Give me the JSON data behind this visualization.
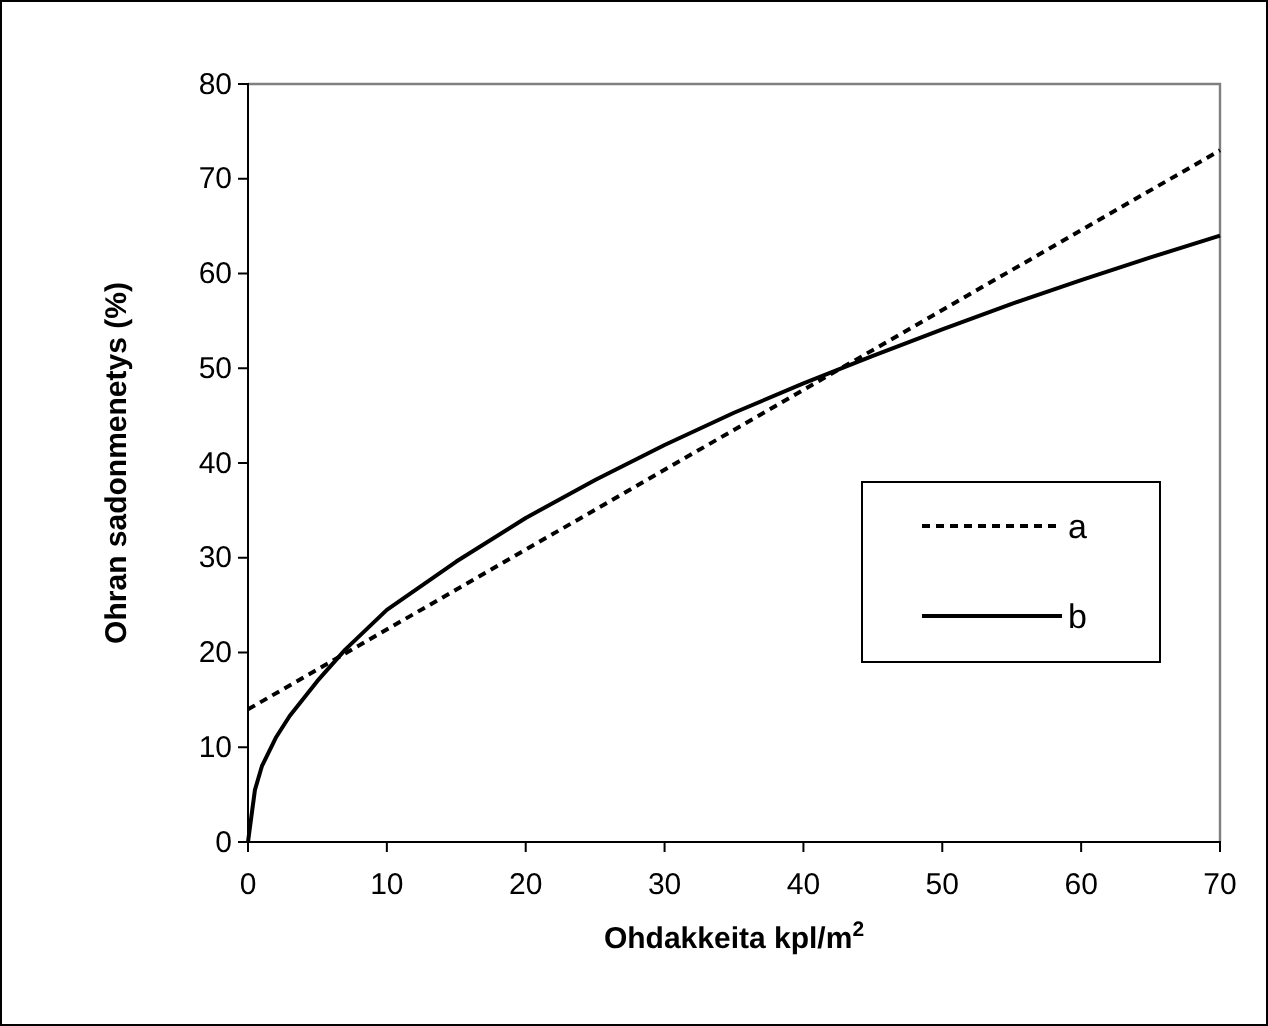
{
  "chart_data": {
    "type": "line",
    "xlabel": "Ohdakkeita kpl/m$^{2}$",
    "ylabel": "Ohran sadonmenetys (%)",
    "xlim": [
      0,
      70
    ],
    "ylim": [
      0,
      80
    ],
    "xticks": [
      0,
      10,
      20,
      30,
      40,
      50,
      60,
      70
    ],
    "yticks": [
      0,
      10,
      20,
      30,
      40,
      50,
      60,
      70,
      80
    ],
    "grid": false,
    "legend": "right",
    "marker": "none",
    "series": [
      {
        "name": "a",
        "color": "#000000",
        "line_style": "dashed",
        "x": [
          0,
          70
        ],
        "values": [
          14,
          73
        ]
      },
      {
        "name": "b",
        "color": "#000000",
        "line_style": "solid",
        "x": [
          0,
          0.5,
          1,
          2,
          3,
          5,
          7,
          10,
          15,
          20,
          25,
          30,
          35,
          40,
          45,
          50,
          55,
          60,
          65,
          70
        ],
        "values": [
          0,
          5.5,
          8,
          11,
          13.3,
          17,
          20.3,
          24.5,
          29.6,
          34.2,
          38.2,
          41.9,
          45.3,
          48.4,
          51.3,
          54.1,
          56.8,
          59.3,
          61.7,
          64
        ]
      }
    ]
  }
}
